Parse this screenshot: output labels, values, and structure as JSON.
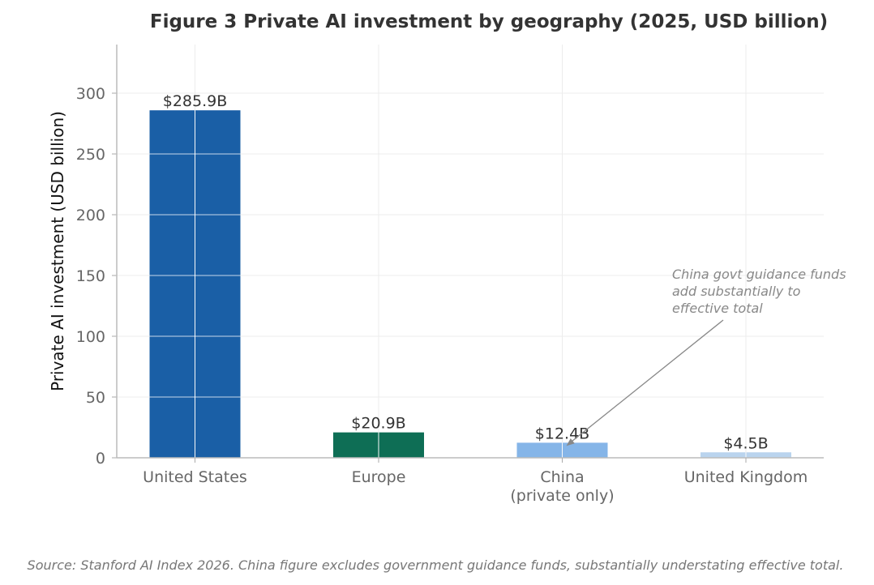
{
  "chart_data": {
    "type": "bar",
    "title": "Figure 3  Private AI investment by geography (2025, USD billion)",
    "ylabel": "Private AI investment (USD billion)",
    "xlabel": "",
    "ylim": [
      0,
      340
    ],
    "yticks": [
      0,
      50,
      100,
      150,
      200,
      250,
      300
    ],
    "grid": true,
    "categories": [
      [
        "United States"
      ],
      [
        "Europe"
      ],
      [
        "China",
        "(private only)"
      ],
      [
        "United Kingdom"
      ]
    ],
    "values": [
      285.9,
      20.9,
      12.4,
      4.5
    ],
    "data_labels": [
      "$285.9B",
      "$20.9B",
      "$12.4B",
      "$4.5B"
    ],
    "colors": [
      "#1a5fa6",
      "#0e6e55",
      "#85b5e8",
      "#bad4ee"
    ],
    "annotation": {
      "lines": [
        "China govt guidance funds",
        "add substantially to",
        "effective total"
      ],
      "target_category_index": 2,
      "target_value": 12.4
    },
    "source": "Source: Stanford AI Index 2026. China figure excludes government guidance funds, substantially understating effective total."
  }
}
